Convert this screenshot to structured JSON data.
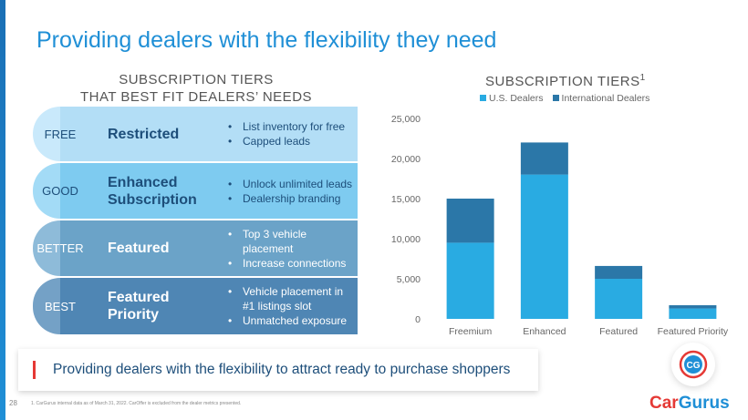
{
  "header": {
    "title": "Providing dealers with the flexibility they need"
  },
  "tiers_panel": {
    "heading_line1": "SUBSCRIPTION TIERS",
    "heading_line2": "THAT BEST FIT DEALERS’ NEEDS",
    "tiers": [
      {
        "level": "FREE",
        "name": "Restricted",
        "bullets": [
          "List inventory for free",
          "Capped leads"
        ],
        "bg": "#b3def6",
        "cap": "#c9e9fb",
        "text": "#1d4e7a"
      },
      {
        "level": "GOOD",
        "name_line1": "Enhanced",
        "name_line2": "Subscription",
        "bullets": [
          "Unlock unlimited leads",
          "Dealership branding"
        ],
        "bg": "#7ecbf0",
        "cap": "#a3dbf6",
        "text": "#1d4e7a"
      },
      {
        "level": "BETTER",
        "name": "Featured",
        "bullets": [
          "Top 3 vehicle placement",
          "Increase connections"
        ],
        "bg": "#6ba3c8",
        "cap": "#8ebbd9",
        "text": "#ffffff"
      },
      {
        "level": "BEST",
        "name_line1": "Featured",
        "name_line2": "Priority",
        "bullet1_line1": "Vehicle placement in",
        "bullet1_line2": "#1 listings slot",
        "bullet2": "Unmatched exposure",
        "bg": "#4f86b4",
        "cap": "#74a1c6",
        "text": "#ffffff"
      }
    ]
  },
  "chart_title": "SUBSCRIPTION TIERS",
  "chart_title_sup": "1",
  "chart_data": {
    "type": "bar",
    "stacked": true,
    "categories": [
      "Freemium",
      "Enhanced",
      "Featured",
      "Featured Priority"
    ],
    "series": [
      {
        "name": "U.S. Dealers",
        "color": "#29abe2",
        "values": [
          9500,
          18000,
          5000,
          1300
        ]
      },
      {
        "name": "International Dealers",
        "color": "#2b77a8",
        "values": [
          5500,
          4000,
          1600,
          400
        ]
      }
    ],
    "ylim": [
      0,
      25000
    ],
    "yticks": [
      "0",
      "5,000",
      "10,000",
      "15,000",
      "20,000",
      "25,000"
    ],
    "legend": "top",
    "grid": false
  },
  "banner": {
    "text": "Providing dealers with the flexibility to attract ready to purchase shoppers"
  },
  "footer": {
    "page_number": "28",
    "footnote": "1.    CarGurus internal data as of March 31, 2022. CarOffer is excluded from the dealer metrics presented.",
    "logo_badge": "CG",
    "brand_part1": "Car",
    "brand_part2": "Gurus"
  }
}
